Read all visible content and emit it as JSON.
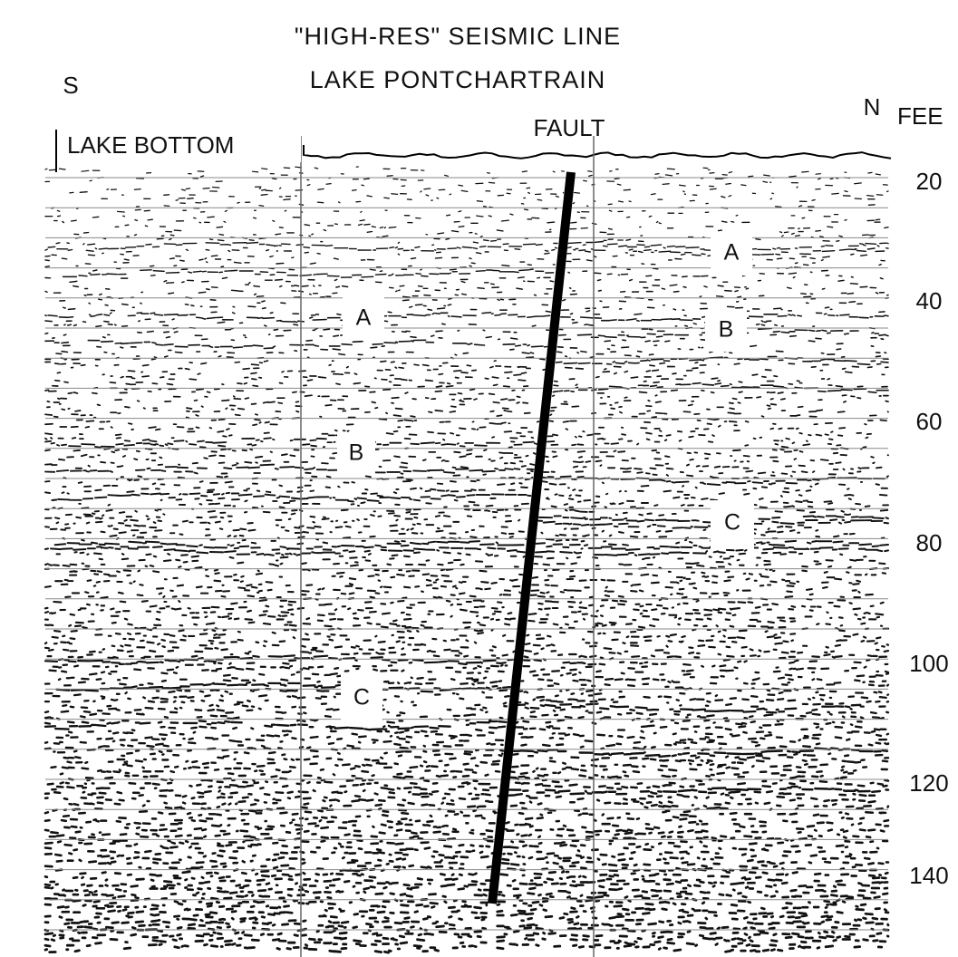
{
  "header": {
    "title": "\"HIGH-RES\" SEISMIC LINE",
    "subtitle": "LAKE PONTCHARTRAIN"
  },
  "labels": {
    "south": "S",
    "north": "N",
    "depth_unit": "FEE",
    "lake_bottom": "LAKE BOTTOM",
    "fault": "FAULT"
  },
  "depth_ticks": [
    20,
    40,
    60,
    80,
    100,
    120,
    140
  ],
  "horizons": {
    "left": [
      "A",
      "B",
      "C"
    ],
    "right": [
      "A",
      "B",
      "C"
    ]
  }
}
